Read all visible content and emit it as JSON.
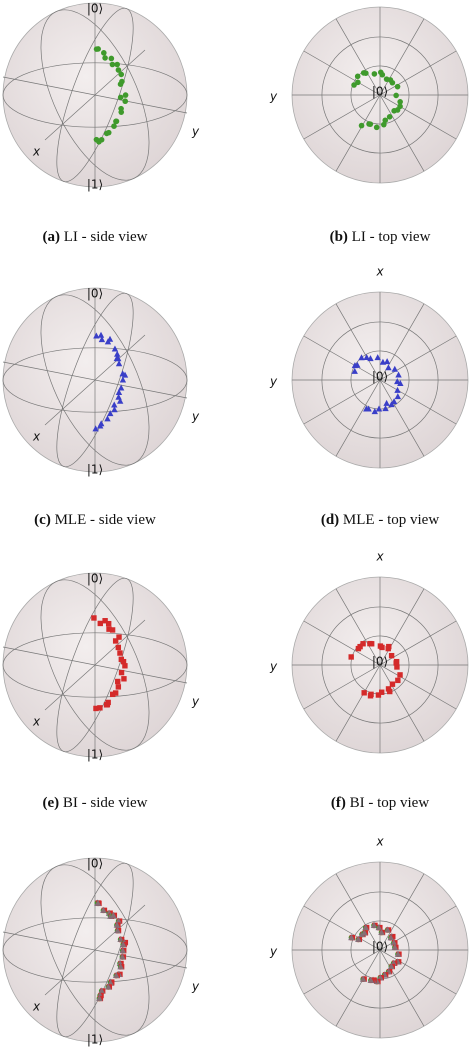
{
  "panels": [
    {
      "view": "side",
      "tag": "(a)",
      "caption": "LI - side view",
      "marker": "circle",
      "color": "#3f9a2c",
      "labels": {
        "north": "|0⟩",
        "south": "|1⟩",
        "x": "x",
        "y": "y"
      }
    },
    {
      "view": "top",
      "tag": "(b)",
      "caption": "LI - top view",
      "marker": "circle",
      "color": "#3f9a2c",
      "labels": {
        "center": "|0⟩",
        "y": "y"
      }
    },
    {
      "view": "side",
      "tag": "(c)",
      "caption": "MLE - side view",
      "marker": "triangle",
      "color": "#3a3fc8",
      "labels": {
        "north": "|0⟩",
        "south": "|1⟩",
        "x": "x",
        "y": "y"
      }
    },
    {
      "view": "top",
      "tag": "(d)",
      "caption": "MLE - top view",
      "marker": "triangle",
      "color": "#3a3fc8",
      "labels": {
        "center": "|0⟩",
        "x": "x",
        "y": "y"
      }
    },
    {
      "view": "side",
      "tag": "(e)",
      "caption": "BI - side view",
      "marker": "square",
      "color": "#d42a2a",
      "labels": {
        "north": "|0⟩",
        "south": "|1⟩",
        "x": "x",
        "y": "y"
      }
    },
    {
      "view": "top",
      "tag": "(f)",
      "caption": "BI - top view",
      "marker": "square",
      "color": "#d42a2a",
      "labels": {
        "center": "|0⟩",
        "x": "x",
        "y": "y"
      }
    },
    {
      "view": "side",
      "marker": "mixed",
      "labels": {
        "north": "|0⟩",
        "south": "|1⟩",
        "x": "x",
        "y": "y"
      }
    },
    {
      "view": "top",
      "marker": "mixed",
      "labels": {
        "center": "|0⟩",
        "x": "x",
        "y": "y"
      }
    }
  ]
}
